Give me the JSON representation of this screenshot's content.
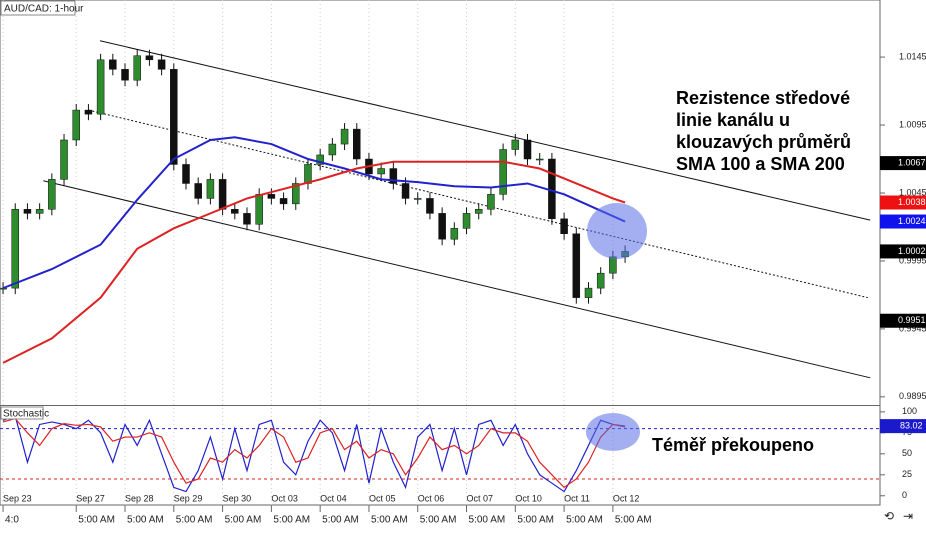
{
  "chart_data": [
    {
      "type": "candlestick",
      "title": "AUD/CAD: 1-hour",
      "x": [
        0,
        1,
        2,
        3,
        4,
        5,
        6,
        7,
        8,
        9,
        10,
        11,
        12,
        13,
        14,
        15,
        16,
        17,
        18,
        19,
        20,
        21,
        22,
        23,
        24,
        25,
        26,
        27,
        28,
        29,
        30,
        31,
        32,
        33,
        34,
        35,
        36,
        37,
        38,
        39,
        40,
        41,
        42,
        43,
        44,
        45,
        46,
        47,
        48,
        49,
        50,
        51
      ],
      "series": [
        {
          "kind": "candle",
          "up_color": "#2e8b2e",
          "down_color": "#111111",
          "values": [
            0.9975,
            1.0033,
            1.003,
            1.0033,
            1.0055,
            1.0084,
            1.0106,
            1.0103,
            1.0143,
            1.0136,
            1.0128,
            1.0146,
            1.0143,
            1.0136,
            1.0066,
            1.0052,
            1.0041,
            1.0055,
            1.0033,
            1.003,
            1.0022,
            1.0044,
            1.0041,
            1.0037,
            1.0052,
            1.0066,
            1.0073,
            1.0081,
            1.0092,
            1.007,
            1.0059,
            1.0063,
            1.0052,
            1.0041,
            1.0041,
            1.003,
            1.0011,
            1.0019,
            1.003,
            1.0033,
            1.0044,
            1.0077,
            1.0084,
            1.007,
            1.007,
            1.0026,
            1.0015,
            0.9968,
            0.9975,
            0.9986,
            0.9998,
            1.0002
          ]
        },
        {
          "kind": "line",
          "color": "#2222cc",
          "x": [
            0,
            4,
            8,
            11,
            14,
            17,
            19,
            22,
            25,
            28,
            31,
            34,
            37,
            40,
            43,
            46,
            49,
            51
          ],
          "values": [
            0.9975,
            0.9989,
            1.0007,
            1.004,
            1.007,
            1.0084,
            1.0086,
            1.0081,
            1.007,
            1.0063,
            1.0055,
            1.0053,
            1.005,
            1.0049,
            1.0052,
            1.0044,
            1.0032,
            1.0024
          ]
        },
        {
          "kind": "line",
          "color": "#dd2222",
          "x": [
            0,
            4,
            8,
            11,
            14,
            17,
            20,
            23,
            26,
            29,
            32,
            35,
            38,
            41,
            44,
            47,
            50,
            51
          ],
          "values": [
            0.992,
            0.9938,
            0.9968,
            1.0004,
            1.0019,
            1.003,
            1.0041,
            1.0048,
            1.0055,
            1.0063,
            1.0068,
            1.0068,
            1.0068,
            1.0068,
            1.0063,
            1.0052,
            1.0041,
            1.0038
          ]
        }
      ],
      "channel": [
        {
          "x": [
            7.95,
            71.1
          ],
          "values": [
            1.0157,
            1.0025
          ],
          "dashed": false
        },
        {
          "x": [
            7,
            70.9
          ],
          "values": [
            1.0106,
            0.9968
          ],
          "dashed": true
        },
        {
          "x": [
            3.3,
            71.1
          ],
          "values": [
            1.0054,
            0.9909
          ],
          "dashed": false
        }
      ],
      "price_labels": [
        {
          "value": 1.0067,
          "color": "#000000"
        },
        {
          "value": 1.0038,
          "color": "#ee1111"
        },
        {
          "value": 1.0024,
          "color": "#1111ee"
        },
        {
          "value": 1.0002,
          "color": "#000000"
        },
        {
          "value": 0.9951,
          "color": "#000000"
        }
      ],
      "xlim": [
        -0.25,
        71.9
      ],
      "ylim": [
        0.9889,
        1.0187
      ],
      "yticks": [
        1.0145,
        1.0095,
        1.0045,
        0.9995,
        0.9945,
        0.9895
      ],
      "annotations": [
        "Rezistence středové",
        "linie kanálu u",
        "klouzavých průměrů",
        "SMA 100 a SMA 200"
      ]
    },
    {
      "type": "line",
      "title": "Stochastic",
      "x": [
        0,
        1,
        2,
        3,
        4,
        5,
        6,
        7,
        8,
        9,
        10,
        11,
        12,
        13,
        14,
        15,
        16,
        17,
        18,
        19,
        20,
        21,
        22,
        23,
        24,
        25,
        26,
        27,
        28,
        29,
        30,
        31,
        32,
        33,
        34,
        35,
        36,
        37,
        38,
        39,
        40,
        41,
        42,
        43,
        44,
        45,
        46,
        47,
        48,
        49,
        50,
        51
      ],
      "series": [
        {
          "color": "#2222cc",
          "values": [
            90,
            95,
            40,
            85,
            88,
            85,
            80,
            90,
            75,
            40,
            85,
            60,
            90,
            50,
            10,
            5,
            30,
            70,
            20,
            80,
            30,
            85,
            90,
            40,
            25,
            65,
            90,
            75,
            30,
            85,
            15,
            80,
            40,
            10,
            70,
            85,
            30,
            80,
            25,
            85,
            90,
            60,
            85,
            50,
            25,
            15,
            5,
            30,
            60,
            90,
            85,
            83.02
          ]
        },
        {
          "color": "#dd2222",
          "values": [
            88,
            92,
            75,
            60,
            80,
            86,
            84,
            85,
            82,
            65,
            70,
            70,
            75,
            70,
            40,
            15,
            20,
            45,
            40,
            55,
            45,
            60,
            80,
            70,
            40,
            45,
            75,
            80,
            55,
            65,
            45,
            55,
            50,
            25,
            45,
            70,
            55,
            60,
            50,
            60,
            80,
            75,
            75,
            65,
            40,
            25,
            10,
            20,
            40,
            70,
            85,
            82
          ]
        }
      ],
      "levels": [
        {
          "value": 80,
          "color": "#2222cc"
        },
        {
          "value": 20,
          "color": "#dd2222"
        }
      ],
      "value_label": 83.02,
      "xlim": [
        -0.25,
        71.9
      ],
      "ylim": [
        -11,
        107
      ],
      "yticks": [
        100,
        75,
        50,
        25,
        0
      ],
      "xticks": [
        {
          "value": 0,
          "label": "Sep 23"
        },
        {
          "value": 6,
          "label": "Sep 27"
        },
        {
          "value": 10,
          "label": "Sep 28"
        },
        {
          "value": 14,
          "label": "Sep 29"
        },
        {
          "value": 18,
          "label": "Sep 30"
        },
        {
          "value": 22,
          "label": "Oct 03"
        },
        {
          "value": 26,
          "label": "Oct 04"
        },
        {
          "value": 30,
          "label": "Oct 05"
        },
        {
          "value": 34,
          "label": "Oct 06"
        },
        {
          "value": 38,
          "label": "Oct 07"
        },
        {
          "value": 42,
          "label": "Oct 10"
        },
        {
          "value": 46,
          "label": "Oct 11"
        },
        {
          "value": 50,
          "label": "Oct 12"
        }
      ],
      "time_ticks": [
        {
          "value": 0,
          "label": "4:0"
        },
        {
          "value": 6,
          "label": "5:00 AM"
        },
        {
          "value": 10,
          "label": "5:00 AM"
        },
        {
          "value": 14,
          "label": "5:00 AM"
        },
        {
          "value": 18,
          "label": "5:00 AM"
        },
        {
          "value": 22,
          "label": "5:00 AM"
        },
        {
          "value": 26,
          "label": "5:00 AM"
        },
        {
          "value": 30,
          "label": "5:00 AM"
        },
        {
          "value": 34,
          "label": "5:00 AM"
        },
        {
          "value": 38,
          "label": "5:00 AM"
        },
        {
          "value": 42,
          "label": "5:00 AM"
        },
        {
          "value": 46,
          "label": "5:00 AM"
        },
        {
          "value": 50,
          "label": "5:00 AM"
        }
      ],
      "annotations": [
        "Téměř překoupeno"
      ]
    }
  ]
}
